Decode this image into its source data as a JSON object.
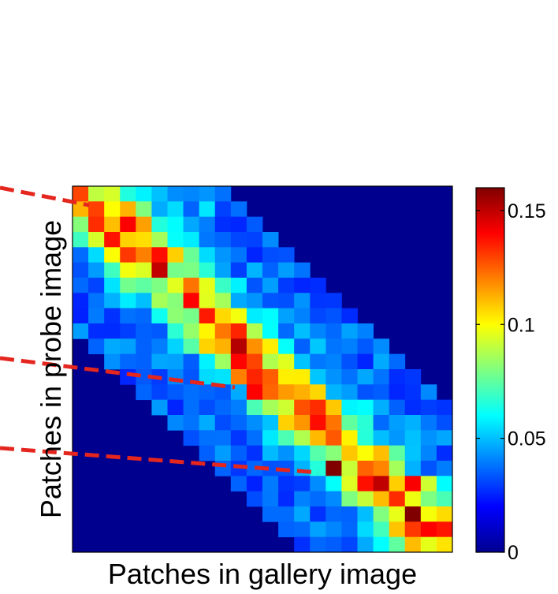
{
  "chart_data": {
    "type": "heatmap",
    "xlabel": "Patches in gallery image",
    "ylabel": "Patches in probe image",
    "rows": 24,
    "cols": 24,
    "band_width": 9,
    "colorbar": {
      "min": 0,
      "max": 0.16,
      "colormap": "jet",
      "ticks": [
        0,
        0.05,
        0.1,
        0.15
      ],
      "tick_labels": [
        "0",
        "0.05",
        "0.1",
        "0.15"
      ]
    },
    "diagonal_samples": [
      {
        "row": 1,
        "col": 1,
        "value": 0.13
      },
      {
        "row": 4,
        "col": 4,
        "value": 0.12
      },
      {
        "row": 7,
        "col": 7,
        "value": 0.14
      },
      {
        "row": 12,
        "col": 10,
        "value": 0.12
      },
      {
        "row": 13,
        "col": 11,
        "value": 0.14
      },
      {
        "row": 18,
        "col": 16,
        "value": 0.16
      },
      {
        "row": 21,
        "col": 21,
        "value": 0.16
      },
      {
        "row": 22,
        "col": 22,
        "value": 0.14
      }
    ],
    "background_value": 0,
    "annotations": [
      {
        "type": "dashed-arrow",
        "color": "#e4261f",
        "target": "row 1 diagonal"
      },
      {
        "type": "dashed-arrow",
        "color": "#e4261f",
        "target": "row 12 diagonal"
      },
      {
        "type": "dashed-arrow",
        "color": "#e4261f",
        "target": "row 18 diagonal"
      }
    ]
  }
}
